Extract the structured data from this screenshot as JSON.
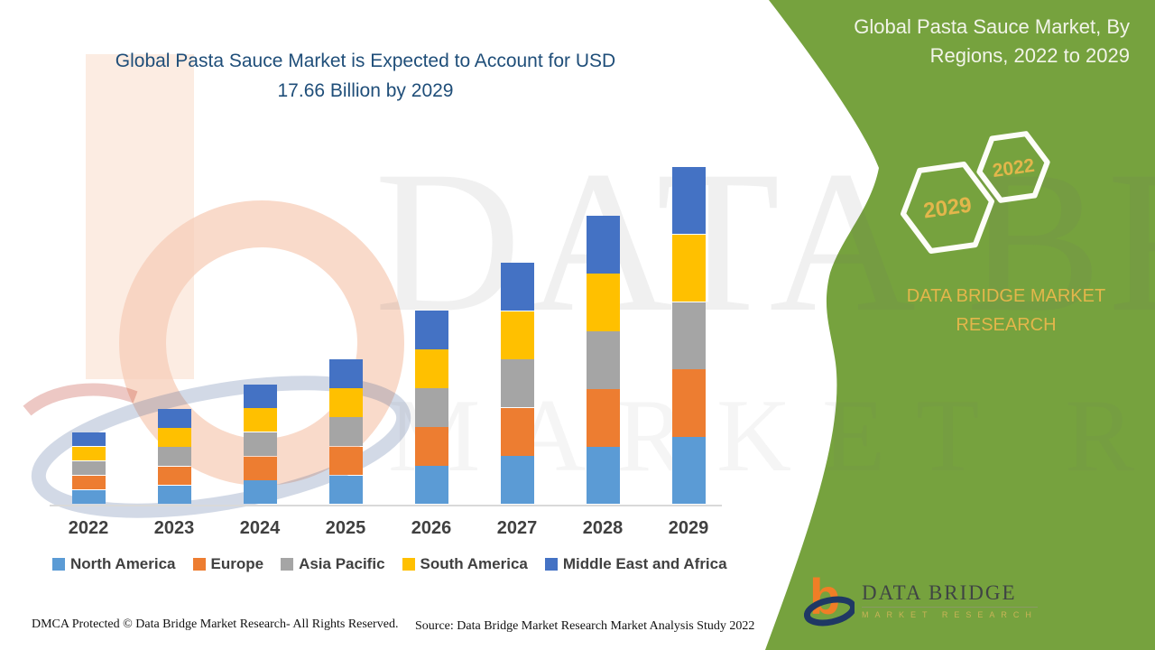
{
  "header": {
    "title_line1": "Global Pasta Sauce Market is Expected to Account for USD",
    "title_line2": "17.66 Billion by 2029",
    "title_color": "#1F4E79"
  },
  "chart_data": {
    "type": "bar",
    "stacked": true,
    "title": "Global Pasta Sauce Market is Expected to Account for USD 17.66 Billion by 2029",
    "unit": "USD Billion",
    "categories": [
      "2022",
      "2023",
      "2024",
      "2025",
      "2026",
      "2027",
      "2028",
      "2029"
    ],
    "series": [
      {
        "name": "North America",
        "color": "#5B9BD5",
        "values": [
          0.76,
          1.0,
          1.26,
          1.52,
          2.03,
          2.53,
          3.02,
          3.53
        ]
      },
      {
        "name": "Europe",
        "color": "#ED7D31",
        "values": [
          0.76,
          1.0,
          1.26,
          1.52,
          2.03,
          2.53,
          3.02,
          3.53
        ]
      },
      {
        "name": "Asia Pacific",
        "color": "#A5A5A5",
        "values": [
          0.76,
          1.0,
          1.26,
          1.52,
          2.03,
          2.53,
          3.02,
          3.53
        ]
      },
      {
        "name": "South America",
        "color": "#FFC000",
        "values": [
          0.76,
          1.0,
          1.26,
          1.52,
          2.03,
          2.53,
          3.02,
          3.53
        ]
      },
      {
        "name": "Middle East and Africa",
        "color": "#4472C4",
        "values": [
          0.76,
          1.0,
          1.26,
          1.52,
          2.03,
          2.53,
          3.02,
          3.53
        ]
      }
    ],
    "totals": [
      3.8,
      5.0,
      6.3,
      7.6,
      10.15,
      12.65,
      15.1,
      17.65
    ],
    "ylim": [
      0,
      18
    ],
    "gridlines": false,
    "y_axis_hidden": true,
    "legend_position": "bottom"
  },
  "green_panel": {
    "color": "#76A23E",
    "title_line1": "Global Pasta Sauce Market, By",
    "title_line2": "Regions, 2022 to 2029",
    "hexagons": [
      {
        "label": "2029"
      },
      {
        "label": "2022"
      }
    ],
    "brand_text": "DATA BRIDGE MARKET RESEARCH",
    "accent_gold": "#E3B64B"
  },
  "watermark": {
    "line1": "DATA BRIDGE",
    "line2": "MARKET RESEARCH"
  },
  "logo": {
    "monogram": "b",
    "name": "DATA BRIDGE",
    "tagline": "MARKET RESEARCH"
  },
  "footer": {
    "left": "DMCA Protected © Data Bridge Market Research- All Rights Reserved.",
    "right": "Source: Data Bridge Market Research Market Analysis Study 2022"
  }
}
